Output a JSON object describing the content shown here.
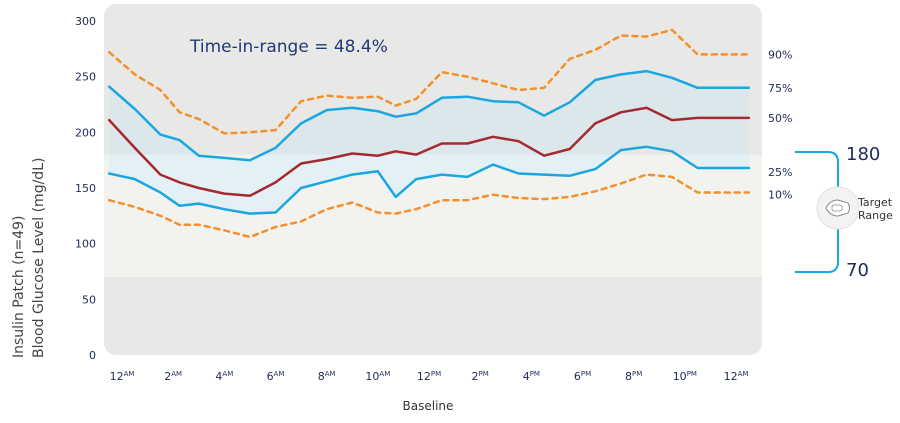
{
  "chart_data": {
    "type": "line",
    "title": "Time-in-range = 48.4%",
    "ylabel_line1": "Insulin Patch (n=49)",
    "ylabel_line2": "Blood Glucose Level (mg/dL)",
    "xlabel": "Baseline",
    "ylim": [
      0,
      300
    ],
    "yticks": [
      "0",
      "50",
      "100",
      "150",
      "200",
      "250",
      "300"
    ],
    "ytick_values": [
      0,
      50,
      100,
      150,
      200,
      250,
      300
    ],
    "xticks": [
      {
        "hour": 0,
        "num": "12",
        "sup": "AM"
      },
      {
        "hour": 2,
        "num": "2",
        "sup": "AM"
      },
      {
        "hour": 4,
        "num": "4",
        "sup": "AM"
      },
      {
        "hour": 6,
        "num": "6",
        "sup": "AM"
      },
      {
        "hour": 8,
        "num": "8",
        "sup": "AM"
      },
      {
        "hour": 10,
        "num": "10",
        "sup": "AM"
      },
      {
        "hour": 12,
        "num": "12",
        "sup": "PM"
      },
      {
        "hour": 14,
        "num": "2",
        "sup": "PM"
      },
      {
        "hour": 16,
        "num": "4",
        "sup": "PM"
      },
      {
        "hour": 18,
        "num": "6",
        "sup": "PM"
      },
      {
        "hour": 20,
        "num": "8",
        "sup": "PM"
      },
      {
        "hour": 22,
        "num": "10",
        "sup": "PM"
      },
      {
        "hour": 24,
        "num": "12",
        "sup": "AM"
      }
    ],
    "xlim": [
      -0.5,
      25
    ],
    "x": [
      -0.5,
      0.5,
      1.5,
      2.25,
      3,
      4,
      5,
      6,
      7,
      8,
      9,
      10,
      10.7,
      11.5,
      12.5,
      13.5,
      14.5,
      15.5,
      16.5,
      17.5,
      18.5,
      19.5,
      20.5,
      21.5,
      22.5,
      23.5,
      24.5
    ],
    "series": [
      {
        "name": "90%",
        "style": "dashed",
        "color": "#f4902b",
        "values": [
          272,
          252,
          238,
          218,
          212,
          199,
          200,
          202,
          228,
          233,
          231,
          232,
          224,
          230,
          254,
          250,
          244,
          238,
          240,
          266,
          274,
          287,
          286,
          292,
          270,
          270,
          270
        ]
      },
      {
        "name": "75%",
        "style": "solid",
        "color": "#1ba6df",
        "values": [
          241,
          221,
          198,
          193,
          179,
          177,
          175,
          186,
          208,
          220,
          222,
          219,
          214,
          217,
          231,
          232,
          228,
          227,
          215,
          227,
          247,
          252,
          255,
          249,
          240,
          240,
          240
        ]
      },
      {
        "name": "50%",
        "style": "solid",
        "color": "#a52a2e",
        "values": [
          211,
          186,
          162,
          155,
          150,
          145,
          143,
          155,
          172,
          176,
          181,
          179,
          183,
          180,
          190,
          190,
          196,
          192,
          179,
          185,
          208,
          218,
          222,
          211,
          213,
          213,
          213
        ]
      },
      {
        "name": "25%",
        "style": "solid",
        "color": "#1ba6df",
        "values": [
          163,
          158,
          146,
          134,
          136,
          131,
          127,
          128,
          150,
          156,
          162,
          165,
          142,
          158,
          162,
          160,
          171,
          163,
          162,
          161,
          167,
          184,
          187,
          183,
          168,
          168,
          168
        ]
      },
      {
        "name": "10%",
        "style": "dashed",
        "color": "#f4902b",
        "values": [
          139,
          133,
          125,
          117,
          117,
          112,
          106,
          115,
          120,
          131,
          137,
          128,
          127,
          131,
          139,
          139,
          144,
          141,
          140,
          142,
          147,
          154,
          162,
          160,
          146,
          146,
          146
        ]
      }
    ],
    "target_range": {
      "low": 70,
      "high": 180,
      "low_label": "70",
      "high_label": "180",
      "label_line1": "Target",
      "label_line2": "Range"
    },
    "bands": {
      "outer_color": "#e8e8e6",
      "target_color": "#f2f2ef",
      "iqr_color": "#dce7ec",
      "iqr_target_color": "#e3f0f6"
    }
  }
}
